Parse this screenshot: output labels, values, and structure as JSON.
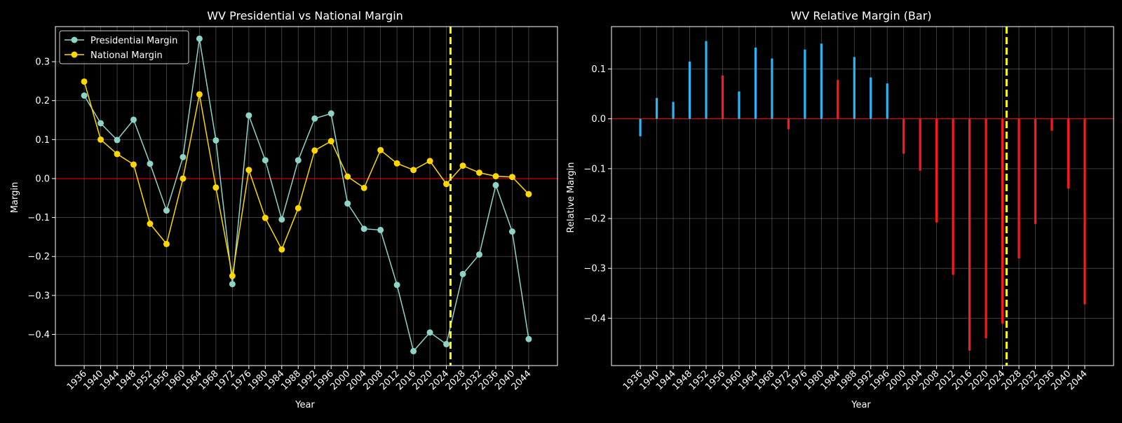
{
  "chart_data": [
    {
      "type": "line",
      "title": "WV Presidential vs National Margin",
      "xlabel": "Year",
      "ylabel": "Margin",
      "x": [
        1936,
        1940,
        1944,
        1948,
        1952,
        1956,
        1960,
        1964,
        1968,
        1972,
        1976,
        1980,
        1984,
        1988,
        1992,
        1996,
        2000,
        2004,
        2008,
        2012,
        2016,
        2020,
        2024,
        2028,
        2032,
        2036,
        2040,
        2044
      ],
      "series": [
        {
          "name": "Presidential Margin",
          "color": "#8dd3c7",
          "values": [
            0.213,
            0.142,
            0.099,
            0.151,
            0.038,
            -0.082,
            0.055,
            0.359,
            0.098,
            -0.271,
            0.162,
            0.047,
            -0.105,
            0.047,
            0.154,
            0.167,
            -0.064,
            -0.129,
            -0.132,
            -0.273,
            -0.443,
            -0.395,
            -0.425,
            -0.245,
            -0.195,
            -0.017,
            -0.136,
            -0.412
          ]
        },
        {
          "name": "National Margin",
          "color": "#ffd700",
          "values": [
            0.249,
            0.1,
            0.063,
            0.036,
            -0.116,
            -0.168,
            0.0,
            0.216,
            -0.023,
            -0.25,
            0.022,
            -0.101,
            -0.182,
            -0.076,
            0.072,
            0.096,
            0.005,
            -0.024,
            0.073,
            0.039,
            0.022,
            0.045,
            -0.014,
            0.033,
            0.015,
            0.006,
            0.004,
            -0.04
          ]
        }
      ],
      "ylim": [
        -0.48,
        0.39
      ],
      "yticks": [
        -0.4,
        -0.3,
        -0.2,
        -0.1,
        0.0,
        0.1,
        0.2,
        0.3
      ],
      "ytick_labels": [
        "−0.4",
        "−0.3",
        "−0.2",
        "−0.1",
        "0.0",
        "0.1",
        "0.2",
        "0.3"
      ],
      "xtick_labels": [
        "1936",
        "1940",
        "1944",
        "1948",
        "1952",
        "1956",
        "1960",
        "1964",
        "1968",
        "1972",
        "1976",
        "1980",
        "1984",
        "1988",
        "1992",
        "1996",
        "2000",
        "2004",
        "2008",
        "2012",
        "2016",
        "2020",
        "2024",
        "2028",
        "2032",
        "2036",
        "2040",
        "2044"
      ],
      "zero_line_color": "#ff0000",
      "marker_year": 2025,
      "marker_color": "#ffff00",
      "grid": true,
      "legend": "top-left"
    },
    {
      "type": "bar",
      "title": "WV Relative Margin (Bar)",
      "xlabel": "Year",
      "ylabel": "Relative Margin",
      "x": [
        1936,
        1940,
        1944,
        1948,
        1952,
        1956,
        1960,
        1964,
        1968,
        1972,
        1976,
        1980,
        1984,
        1988,
        1992,
        1996,
        2000,
        2004,
        2008,
        2012,
        2016,
        2020,
        2024,
        2028,
        2032,
        2036,
        2040,
        2044
      ],
      "values": [
        -0.035,
        0.042,
        0.034,
        0.115,
        0.156,
        0.087,
        0.055,
        0.143,
        0.121,
        -0.021,
        0.139,
        0.151,
        0.078,
        0.124,
        0.083,
        0.071,
        -0.07,
        -0.104,
        -0.208,
        -0.313,
        -0.465,
        -0.44,
        -0.411,
        -0.28,
        -0.211,
        -0.024,
        -0.14,
        -0.372
      ],
      "colors": [
        "#29b6f6",
        "#29b6f6",
        "#29b6f6",
        "#29b6f6",
        "#29b6f6",
        "#ff1a1a",
        "#29b6f6",
        "#29b6f6",
        "#29b6f6",
        "#ff1a1a",
        "#29b6f6",
        "#29b6f6",
        "#ff1a1a",
        "#29b6f6",
        "#29b6f6",
        "#29b6f6",
        "#ff1a1a",
        "#ff1a1a",
        "#ff1a1a",
        "#ff1a1a",
        "#ff1a1a",
        "#ff1a1a",
        "#ff1a1a",
        "#ff1a1a",
        "#ff1a1a",
        "#ff1a1a",
        "#ff1a1a",
        "#ff1a1a"
      ],
      "ylim": [
        -0.495,
        0.185
      ],
      "yticks": [
        -0.4,
        -0.3,
        -0.2,
        -0.1,
        0.0,
        0.1
      ],
      "ytick_labels": [
        "−0.4",
        "−0.3",
        "−0.2",
        "−0.1",
        "0.0",
        "0.1"
      ],
      "xtick_labels": [
        "1936",
        "1940",
        "1944",
        "1948",
        "1952",
        "1956",
        "1960",
        "1964",
        "1968",
        "1972",
        "1976",
        "1980",
        "1984",
        "1988",
        "1992",
        "1996",
        "2000",
        "2004",
        "2008",
        "2012",
        "2016",
        "2020",
        "2024",
        "2028",
        "2032",
        "2036",
        "2040",
        "2044"
      ],
      "zero_line_color": "#ff0000",
      "marker_year": 2025,
      "marker_color": "#ffff00",
      "grid": true
    }
  ]
}
